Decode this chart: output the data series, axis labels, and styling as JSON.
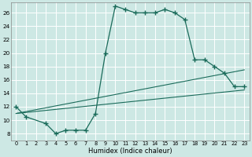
{
  "xlabel": "Humidex (Indice chaleur)",
  "background_color": "#cde8e4",
  "grid_color": "#ffffff",
  "line_color": "#1a6b5a",
  "xlim": [
    -0.5,
    23.5
  ],
  "ylim": [
    7.0,
    27.5
  ],
  "xticks": [
    0,
    1,
    2,
    3,
    4,
    5,
    6,
    7,
    8,
    9,
    10,
    11,
    12,
    13,
    14,
    15,
    16,
    17,
    18,
    19,
    20,
    21,
    22,
    23
  ],
  "yticks": [
    8,
    10,
    12,
    14,
    16,
    18,
    20,
    22,
    24,
    26
  ],
  "main_x": [
    0,
    1,
    3,
    4,
    5,
    6,
    7,
    8,
    9,
    10,
    11,
    12,
    13,
    14,
    15,
    16,
    17,
    18,
    19,
    20,
    21,
    22,
    23
  ],
  "main_y": [
    12.0,
    10.5,
    9.5,
    8.0,
    8.5,
    8.5,
    8.5,
    11.0,
    20.0,
    27.0,
    26.5,
    26.0,
    26.0,
    26.0,
    26.5,
    26.0,
    25.0,
    19.0,
    19.0,
    18.0,
    17.0,
    15.0,
    15.0
  ],
  "line1_x": [
    0,
    23
  ],
  "line1_y": [
    11.0,
    14.5
  ],
  "line2_x": [
    0,
    23
  ],
  "line2_y": [
    11.0,
    17.5
  ]
}
